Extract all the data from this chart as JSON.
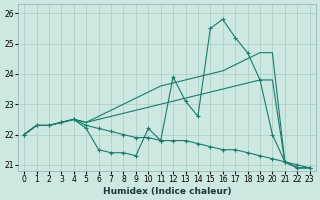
{
  "xlabel": "Humidex (Indice chaleur)",
  "bg_color": "#cce8e0",
  "grid_color": "#aaccc4",
  "line_color": "#1a7a6e",
  "xlim": [
    -0.5,
    23.5
  ],
  "ylim": [
    20.8,
    26.3
  ],
  "yticks": [
    21,
    22,
    23,
    24,
    25,
    26
  ],
  "xticks": [
    0,
    1,
    2,
    3,
    4,
    5,
    6,
    7,
    8,
    9,
    10,
    11,
    12,
    13,
    14,
    15,
    16,
    17,
    18,
    19,
    20,
    21,
    22,
    23
  ],
  "series": [
    [
      22.0,
      22.3,
      22.3,
      22.4,
      22.5,
      22.2,
      21.5,
      21.4,
      21.4,
      21.3,
      22.2,
      21.8,
      23.9,
      23.1,
      22.6,
      25.5,
      25.8,
      25.2,
      24.7,
      23.8,
      22.0,
      21.1,
      20.9,
      20.9
    ],
    [
      22.0,
      22.3,
      22.3,
      22.4,
      22.5,
      22.3,
      22.2,
      22.1,
      22.0,
      21.9,
      21.9,
      21.8,
      21.8,
      21.8,
      21.7,
      21.6,
      21.5,
      21.5,
      21.4,
      21.3,
      21.2,
      21.1,
      21.0,
      20.9
    ],
    [
      22.0,
      22.3,
      22.3,
      22.4,
      22.5,
      22.4,
      22.5,
      22.6,
      22.7,
      22.8,
      22.9,
      23.0,
      23.1,
      23.2,
      23.3,
      23.4,
      23.5,
      23.6,
      23.7,
      23.8,
      23.8,
      21.1,
      20.9,
      20.9
    ],
    [
      22.0,
      22.3,
      22.3,
      22.4,
      22.5,
      22.4,
      22.6,
      22.8,
      23.0,
      23.2,
      23.4,
      23.6,
      23.7,
      23.8,
      23.9,
      24.0,
      24.1,
      24.3,
      24.5,
      24.7,
      24.7,
      21.1,
      20.9,
      20.9
    ]
  ]
}
